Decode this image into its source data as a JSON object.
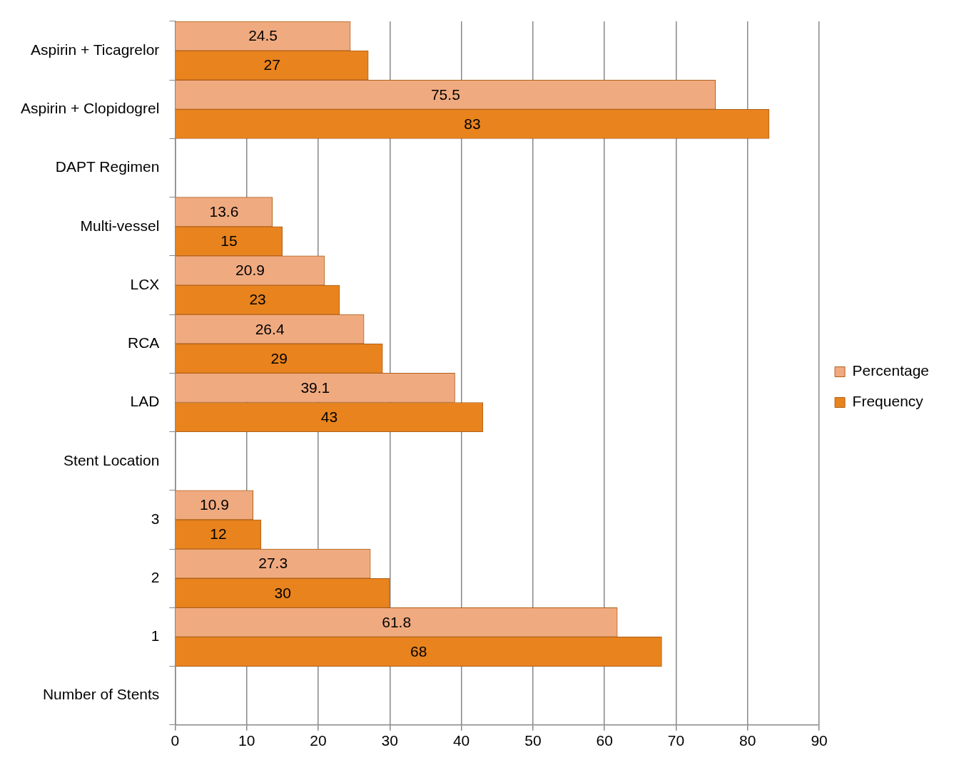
{
  "chart_data": {
    "type": "bar",
    "orientation": "horizontal",
    "categories": [
      "Aspirin + Ticagrelor",
      "Aspirin + Clopidogrel",
      "DAPT Regimen",
      "Multi-vessel",
      "LCX",
      "RCA",
      "LAD",
      "Stent Location",
      "3",
      "2",
      "1",
      "Number of Stents"
    ],
    "series": [
      {
        "name": "Percentage",
        "color": "#f0aa80",
        "values": [
          24.5,
          75.5,
          null,
          13.6,
          20.9,
          26.4,
          39.1,
          null,
          10.9,
          27.3,
          61.8,
          null
        ]
      },
      {
        "name": "Frequency",
        "color": "#e8831e",
        "values": [
          27,
          83,
          null,
          15,
          23,
          29,
          43,
          null,
          12,
          30,
          68,
          null
        ]
      }
    ],
    "xlim": [
      0,
      90
    ],
    "xticks": [
      0,
      10,
      20,
      30,
      40,
      50,
      60,
      70,
      80,
      90
    ],
    "grid": "x",
    "legend": "right",
    "data_labels": true
  }
}
